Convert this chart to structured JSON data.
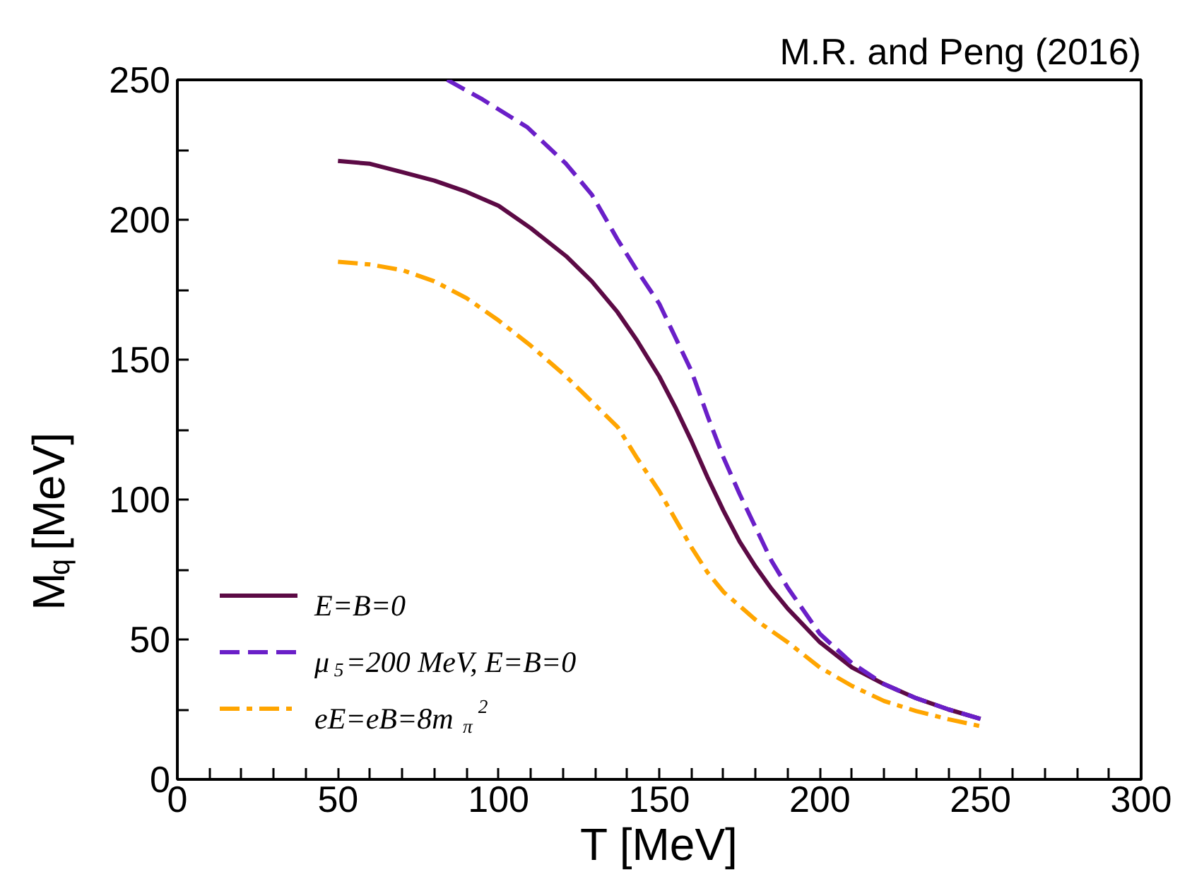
{
  "chart_data": {
    "type": "line",
    "title": "M.R. and Peng (2016)",
    "xlabel": "T [MeV]",
    "ylabel": "M$_{q}$ [MeV]",
    "xlim": [
      0,
      300
    ],
    "ylim": [
      0,
      250
    ],
    "xticks": [
      0,
      {
        "value": 10,
        "label": null
      },
      {
        "value": 20,
        "label": null
      },
      {
        "value": 30,
        "label": null
      },
      {
        "value": 40,
        "label": null
      },
      50,
      {
        "value": 60,
        "label": null
      },
      {
        "value": 70,
        "label": null
      },
      {
        "value": 80,
        "label": null
      },
      {
        "value": 90,
        "label": null
      },
      100,
      {
        "value": 110,
        "label": null
      },
      {
        "value": 120,
        "label": null
      },
      {
        "value": 130,
        "label": null
      },
      {
        "value": 140,
        "label": null
      },
      150,
      {
        "value": 160,
        "label": null
      },
      {
        "value": 170,
        "label": null
      },
      {
        "value": 180,
        "label": null
      },
      {
        "value": 190,
        "label": null
      },
      200,
      {
        "value": 210,
        "label": null
      },
      {
        "value": 220,
        "label": null
      },
      {
        "value": 230,
        "label": null
      },
      {
        "value": 240,
        "label": null
      },
      250,
      {
        "value": 260,
        "label": null
      },
      {
        "value": 270,
        "label": null
      },
      {
        "value": 280,
        "label": null
      },
      {
        "value": 290,
        "label": null
      },
      300
    ],
    "yticks": [
      0,
      {
        "value": 25,
        "label": null
      },
      50,
      {
        "value": 75,
        "label": null
      },
      100,
      {
        "value": 125,
        "label": null
      },
      150,
      {
        "value": 175,
        "label": null
      },
      200,
      {
        "value": 225,
        "label": null
      },
      250
    ],
    "grid": false,
    "legend": "bottom left",
    "series": [
      {
        "name": "E=B=0",
        "color": "#5c0a45",
        "line_style": "solid",
        "x": [
          50,
          60,
          70,
          80,
          90,
          100,
          110,
          121,
          129,
          137,
          143,
          150,
          155,
          160,
          165,
          170,
          175,
          180,
          185,
          190,
          200,
          210,
          220,
          230,
          240,
          250
        ],
        "values": [
          221,
          220,
          217,
          214,
          210,
          205,
          197,
          187,
          178,
          167,
          157,
          144,
          133,
          121,
          108,
          96,
          85,
          76,
          68,
          61,
          49,
          40,
          34,
          29,
          25,
          21.6
        ]
      },
      {
        "name": "μ$_{5}$=200 MeV, E=B=0",
        "color": "#6a1fc8",
        "line_style": "dashed",
        "x": [
          84,
          95,
          109,
          121,
          129,
          137,
          143,
          150,
          155,
          160,
          165,
          170,
          175,
          180,
          185,
          190,
          200,
          210,
          220,
          230,
          240,
          250
        ],
        "values": [
          250,
          243,
          233,
          220,
          209,
          193,
          182,
          170,
          158,
          146,
          130,
          115,
          102,
          90,
          78,
          68.5,
          52,
          41.5,
          34,
          29,
          25,
          21.6
        ]
      },
      {
        "name": "eE=eB=8m$_{π}$$^{2}$",
        "color": "#ffa500",
        "line_style": "dashdot",
        "x": [
          50,
          60,
          70,
          80,
          90,
          100,
          110,
          121,
          129,
          137,
          143,
          150,
          155,
          160,
          165,
          170,
          180,
          190,
          200,
          210,
          220,
          230,
          240,
          250
        ],
        "values": [
          185,
          184,
          182,
          178,
          172,
          164,
          155,
          144,
          135,
          126,
          115,
          103,
          93,
          83,
          74,
          67,
          57,
          49,
          40,
          33.4,
          28,
          24.4,
          21.5,
          19
        ]
      }
    ]
  }
}
